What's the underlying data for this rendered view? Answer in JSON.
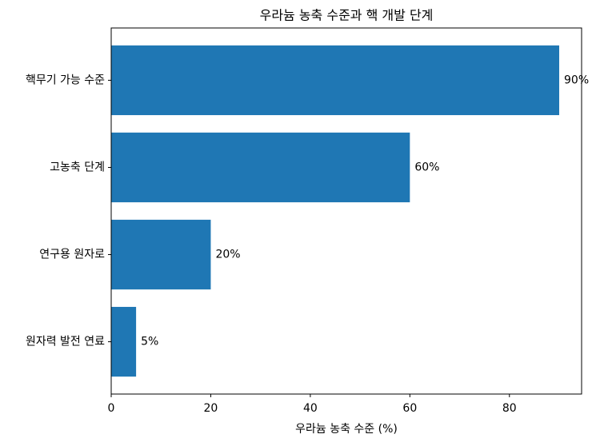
{
  "chart_data": {
    "type": "barh",
    "title": "우라늄 농축 수준과 핵 개발 단계",
    "xlabel": "우라늄 농축 수준 (%)",
    "categories": [
      "원자력 발전 연료",
      "연구용 원자로",
      "고농축 단계",
      "핵무기 가능 수준"
    ],
    "values": [
      5,
      20,
      60,
      90
    ],
    "value_labels": [
      "5%",
      "20%",
      "60%",
      "90%"
    ],
    "color": "#1f77b4",
    "xlim": [
      0,
      94.5
    ],
    "xticks": [
      0,
      20,
      40,
      60,
      80
    ],
    "grid": false
  }
}
